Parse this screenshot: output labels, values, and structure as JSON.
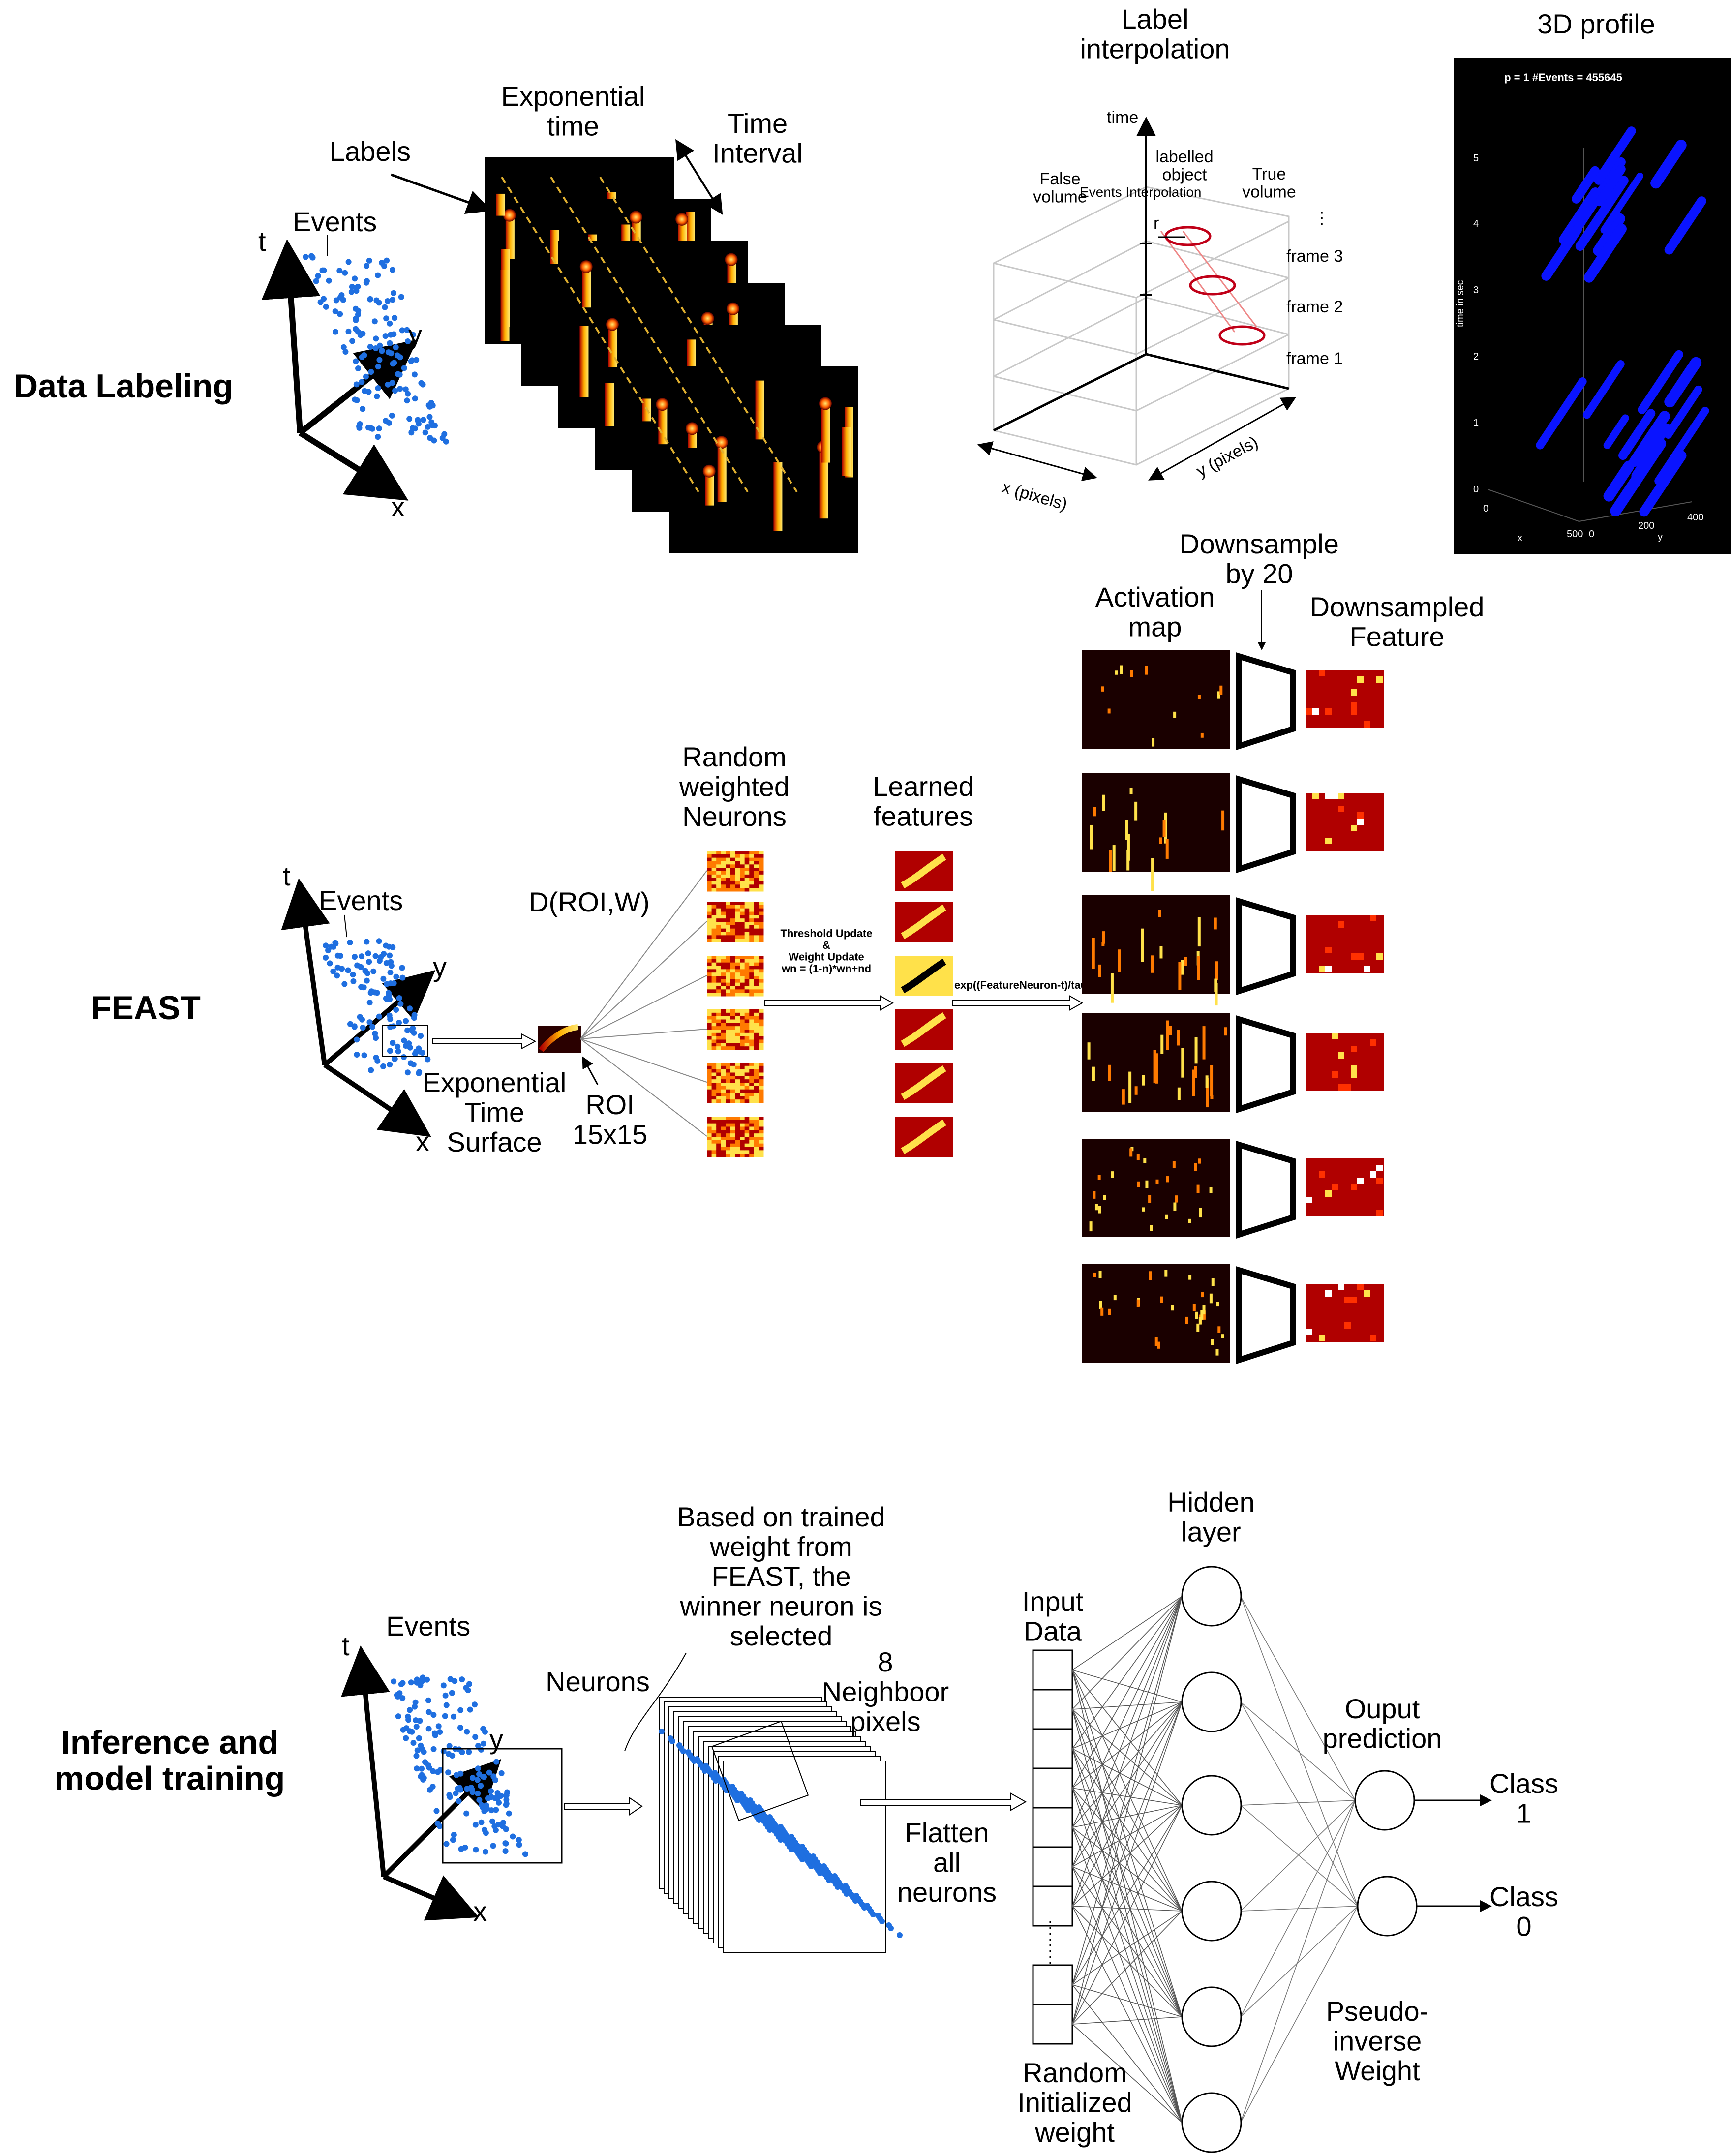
{
  "colors": {
    "event_dot": "#1f6fe0",
    "heat_dark": "#1a0000",
    "heat_red": "#b00000",
    "heat_orange": "#ff7a00",
    "heat_yellow": "#ffe14a",
    "blue_profile": "#0a14ff"
  },
  "sections": {
    "data_labeling": "Data Labeling",
    "feast": "FEAST",
    "inference": "Inference and\nmodel training"
  },
  "labeling": {
    "events": "Events",
    "axis_t": "t",
    "axis_y": "y",
    "axis_x": "x",
    "labels": "Labels",
    "exp_time": "Exponential\ntime",
    "time_interval": "Time\nInterval"
  },
  "interp": {
    "title": "Label\ninterpolation",
    "time": "time",
    "false_volume": "False\nvolume",
    "events_interp": "Events Interpolation",
    "labelled_object": "labelled\nobject",
    "true_volume": "True\nvolume",
    "r": "r",
    "dots": "⋮",
    "frame3": "frame 3",
    "frame2": "frame 2",
    "frame1": "frame 1",
    "xpix": "x (pixels)",
    "ypix": "y (pixels)"
  },
  "profile": {
    "title": "3D profile",
    "header": "p = 1  #Events = 455645",
    "zlabel": "time in sec",
    "zticks": [
      "5",
      "4",
      "3",
      "2",
      "1",
      "0"
    ],
    "xticks": [
      "0",
      "500"
    ],
    "yticks": [
      "0",
      "200",
      "400"
    ],
    "xlabel": "x",
    "ylabel": "y"
  },
  "feast": {
    "events": "Events",
    "axis_t": "t",
    "axis_y": "y",
    "axis_x": "x",
    "ets": "Exponential\nTime\nSurface",
    "droi": "D(ROI,W)",
    "roi": "ROI\n15x15",
    "random": "Random\nweighted\nNeurons",
    "learned": "Learned\nfeatures",
    "update": "Threshold Update\n&\nWeight Update\nwn = (1-n)*wn+nd",
    "exp_label": "exp((FeatureNeuron-t)/tau",
    "downsample": "Downsample\nby 20",
    "activation": "Activation\nmap",
    "downsampled": "Downsampled\nFeature"
  },
  "infer": {
    "events": "Events",
    "axis_t": "t",
    "axis_y": "y",
    "axis_x": "x",
    "neurons": "Neurons",
    "based": "Based on trained\nweight from\nFEAST, the\nwinner neuron is\nselected",
    "neighbor": "8\nNeighboor\npixels",
    "flatten": "Flatten\nall\nneurons",
    "input": "Input\nData",
    "hidden": "Hidden\nlayer",
    "output": "Ouput\nprediction",
    "class1": "Class\n1",
    "class0": "Class\n0",
    "pinv": "Pseudo-\ninverse\nWeight",
    "random_w": "Random\nInitialized\nweight"
  }
}
